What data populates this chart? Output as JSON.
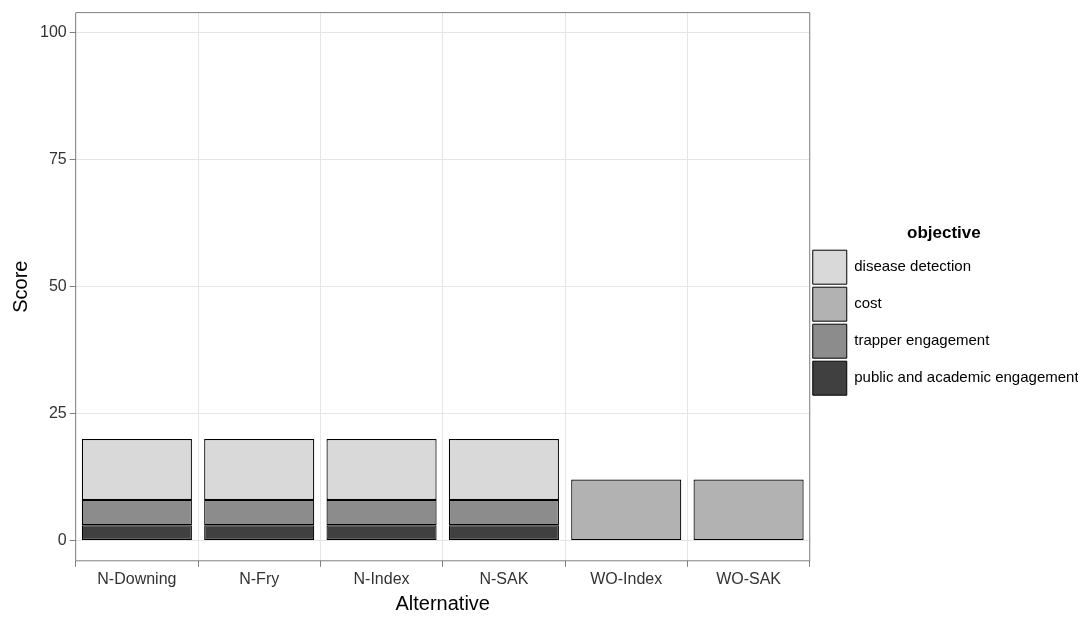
{
  "chart_data": {
    "type": "bar",
    "xlabel": "Alternative",
    "ylabel": "Score",
    "legend_title": "objective",
    "stacked": true,
    "legend": "right",
    "grid": true,
    "categories": [
      "N-Downing",
      "N-Fry",
      "N-Index",
      "N-SAK",
      "WO-Index",
      "WO-SAK"
    ],
    "series": [
      {
        "name": "public and academic engagement",
        "color": "#404040",
        "values": [
          3,
          3,
          3,
          3,
          null,
          null
        ]
      },
      {
        "name": "trapper engagement",
        "color": "#8c8c8c",
        "values": [
          5,
          5,
          5,
          5,
          null,
          null
        ]
      },
      {
        "name": "cost",
        "color": "#b2b2b2",
        "values": [
          null,
          null,
          null,
          null,
          12,
          12
        ]
      },
      {
        "name": "disease detection",
        "color": "#d9d9d9",
        "values": [
          12,
          12,
          12,
          12,
          null,
          null
        ]
      }
    ],
    "ylim": [
      -4,
      104
    ],
    "yticks": [
      0,
      25,
      50,
      75,
      100
    ]
  }
}
